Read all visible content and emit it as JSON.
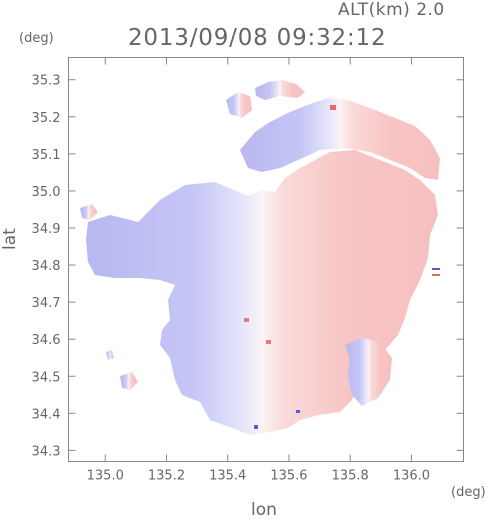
{
  "header": {
    "altitude": "ALT(km) 2.0",
    "timestamp": "2013/09/08 09:32:12"
  },
  "axes": {
    "y_unit": "(deg)",
    "x_unit": "(deg)",
    "y_label": "lat",
    "x_label": "lon"
  },
  "chart_data": {
    "type": "heatmap",
    "x_ticks": [
      135.0,
      135.2,
      135.4,
      135.6,
      135.8,
      136.0
    ],
    "x_tick_labels": [
      "135.0",
      "135.2",
      "135.4",
      "135.6",
      "135.8",
      "136.0"
    ],
    "y_ticks": [
      34.3,
      34.4,
      34.5,
      34.6,
      34.7,
      34.8,
      34.9,
      35.0,
      35.1,
      35.2,
      35.3
    ],
    "y_tick_labels": [
      "34.3",
      "34.4",
      "34.5",
      "34.6",
      "34.7",
      "34.8",
      "34.9",
      "35.0",
      "35.1",
      "35.2",
      "35.3"
    ],
    "xlim": [
      134.88,
      136.17
    ],
    "ylim": [
      34.27,
      35.36
    ],
    "colors": {
      "negative": "#c8c8f5",
      "positive": "#f7c2c2",
      "zero": "#ffffff",
      "axis": "#888888"
    }
  }
}
